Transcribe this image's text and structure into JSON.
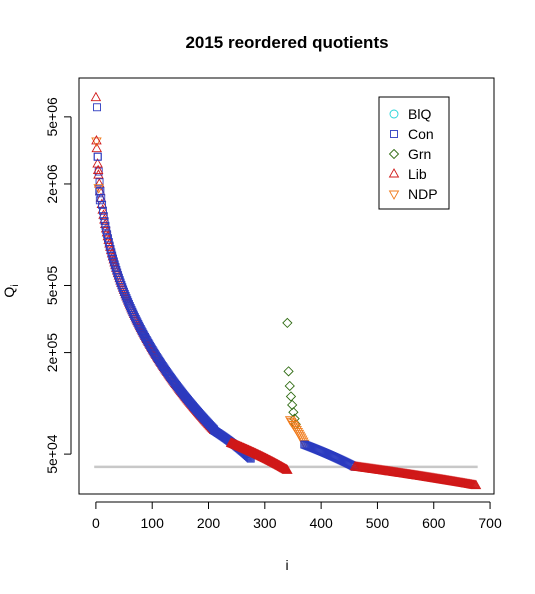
{
  "chart_data": {
    "type": "scatter",
    "title": "2015 reordered quotients",
    "xlabel": "i",
    "ylabel": "Q",
    "ylabel_sub": "i",
    "xlim": [
      -30,
      707
    ],
    "ylim": [
      29000,
      8500000
    ],
    "y_scale": "log",
    "x_ticks": [
      0,
      100,
      200,
      300,
      400,
      500,
      600,
      700
    ],
    "y_ticks": [
      {
        "value": 50000,
        "label": "5e+04"
      },
      {
        "value": 200000,
        "label": "2e+05"
      },
      {
        "value": 500000,
        "label": "5e+05"
      },
      {
        "value": 2000000,
        "label": "2e+06"
      },
      {
        "value": 5000000,
        "label": "5e+06"
      }
    ],
    "legend_position": "top-right",
    "reference_line": {
      "y": 42000,
      "x_range": [
        -3,
        678
      ],
      "color": "#c8c8c8"
    },
    "series": [
      {
        "name": "BlQ",
        "marker": "circle",
        "color": "#22d3d8"
      },
      {
        "name": "Con",
        "marker": "square",
        "color": "#2b3bc0"
      },
      {
        "name": "Grn",
        "marker": "diamond",
        "color": "#2f6b12"
      },
      {
        "name": "Lib",
        "marker": "triangle-up",
        "color": "#d01818"
      },
      {
        "name": "NDP",
        "marker": "triangle-down",
        "color": "#f07a1a"
      }
    ],
    "segments": [
      {
        "series": "Lib",
        "x_range": [
          0,
          210
        ],
        "y_range": [
          6500000,
          69000
        ],
        "curve": "power",
        "count": 140
      },
      {
        "series": "Con",
        "x_range": [
          2,
          210
        ],
        "y_range": [
          5700000,
          70000
        ],
        "curve": "power",
        "count": 140
      },
      {
        "series": "Con",
        "x_range": [
          210,
          275
        ],
        "y_range": [
          69000,
          47000
        ],
        "curve": "linear",
        "count": 40
      },
      {
        "series": "Lib",
        "x_range": [
          240,
          340
        ],
        "y_range": [
          58000,
          40000
        ],
        "curve": "linear",
        "count": 90
      },
      {
        "series": "Grn",
        "x_range": [
          340,
          355
        ],
        "y_range": [
          300000,
          75000
        ],
        "curve": "power",
        "count": 8
      },
      {
        "series": "NDP",
        "x_range": [
          345,
          370
        ],
        "y_range": [
          80000,
          58000
        ],
        "curve": "linear",
        "count": 14
      },
      {
        "series": "Con",
        "x_range": [
          370,
          460
        ],
        "y_range": [
          57000,
          42000
        ],
        "curve": "linear",
        "count": 50
      },
      {
        "series": "Lib",
        "x_range": [
          460,
          675
        ],
        "y_range": [
          42000,
          32500
        ],
        "curve": "linear",
        "count": 120
      }
    ],
    "highlights": [
      {
        "series": "NDP",
        "x": 1,
        "y": 3600000
      },
      {
        "series": "Lib",
        "x": 1,
        "y": 3600000
      },
      {
        "series": "Con",
        "x": 3,
        "y": 2900000
      },
      {
        "series": "Lib",
        "x": 4,
        "y": 2400000
      },
      {
        "series": "NDP",
        "x": 5,
        "y": 1900000
      },
      {
        "series": "Con",
        "x": 6,
        "y": 1800000
      },
      {
        "series": "Con",
        "x": 7,
        "y": 1600000
      }
    ]
  }
}
